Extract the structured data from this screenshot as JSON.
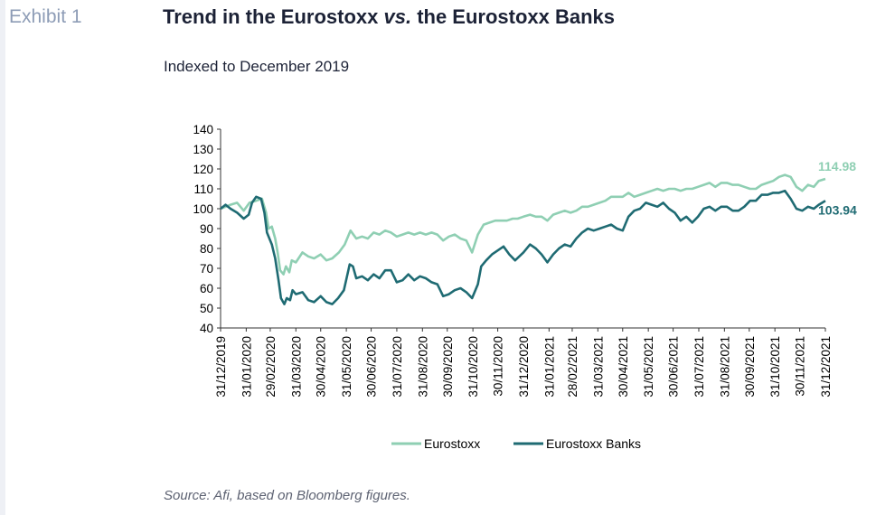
{
  "header": {
    "exhibit": "Exhibit 1",
    "title_part1": "Trend in the Eurostoxx ",
    "title_italic": "vs.",
    "title_part2": " the Eurostoxx Banks",
    "subtitle": "Indexed to December 2019"
  },
  "footer": {
    "source": "Source: Afi, based on Bloomberg figures."
  },
  "colors": {
    "eurostoxx": "#8fcfb3",
    "banks": "#1f6b73",
    "title": "#1c2236",
    "exhibit": "#8d9cb6"
  },
  "chart_data": {
    "type": "line",
    "ylim": [
      40,
      140
    ],
    "y_ticks": [
      40,
      50,
      60,
      70,
      80,
      90,
      100,
      110,
      120,
      130,
      140
    ],
    "x_start": "31/12/2019",
    "x_end": "31/12/2021",
    "x_tick_labels": [
      "31/12/2019",
      "31/01/2020",
      "29/02/2020",
      "31/03/2020",
      "30/04/2020",
      "31/05/2020",
      "30/06/2020",
      "31/07/2020",
      "31/08/2020",
      "30/09/2020",
      "31/10/2020",
      "30/11/2020",
      "31/12/2020",
      "31/01/2021",
      "28/02/2021",
      "31/03/2021",
      "30/04/2021",
      "31/05/2021",
      "30/06/2021",
      "31/07/2021",
      "31/08/2021",
      "30/09/2021",
      "31/10/2021",
      "30/11/2021",
      "31/12/2021"
    ],
    "legend_position": "bottom",
    "series": [
      {
        "name": "Eurostoxx",
        "end_label": "114.98",
        "points": [
          [
            "31/12/2019",
            100
          ],
          [
            "06/01/2020",
            101
          ],
          [
            "12/01/2020",
            102
          ],
          [
            "20/01/2020",
            103
          ],
          [
            "28/01/2020",
            99
          ],
          [
            "04/02/2020",
            103
          ],
          [
            "12/02/2020",
            104
          ],
          [
            "19/02/2020",
            105
          ],
          [
            "24/02/2020",
            98
          ],
          [
            "27/02/2020",
            90
          ],
          [
            "02/03/2020",
            91
          ],
          [
            "06/03/2020",
            85
          ],
          [
            "09/03/2020",
            78
          ],
          [
            "12/03/2020",
            69
          ],
          [
            "16/03/2020",
            67
          ],
          [
            "19/03/2020",
            71
          ],
          [
            "23/03/2020",
            68
          ],
          [
            "26/03/2020",
            74
          ],
          [
            "31/03/2020",
            73
          ],
          [
            "08/04/2020",
            78
          ],
          [
            "15/04/2020",
            76
          ],
          [
            "22/04/2020",
            75
          ],
          [
            "30/04/2020",
            77
          ],
          [
            "07/05/2020",
            74
          ],
          [
            "14/05/2020",
            75
          ],
          [
            "22/05/2020",
            78
          ],
          [
            "29/05/2020",
            82
          ],
          [
            "05/06/2020",
            89
          ],
          [
            "12/06/2020",
            85
          ],
          [
            "19/06/2020",
            86
          ],
          [
            "26/06/2020",
            85
          ],
          [
            "03/07/2020",
            88
          ],
          [
            "10/07/2020",
            87
          ],
          [
            "17/07/2020",
            89
          ],
          [
            "24/07/2020",
            88
          ],
          [
            "31/07/2020",
            86
          ],
          [
            "07/08/2020",
            87
          ],
          [
            "14/08/2020",
            88
          ],
          [
            "21/08/2020",
            87
          ],
          [
            "28/08/2020",
            88
          ],
          [
            "04/09/2020",
            87
          ],
          [
            "11/09/2020",
            88
          ],
          [
            "18/09/2020",
            87
          ],
          [
            "25/09/2020",
            84
          ],
          [
            "02/10/2020",
            86
          ],
          [
            "09/10/2020",
            87
          ],
          [
            "16/10/2020",
            85
          ],
          [
            "23/10/2020",
            84
          ],
          [
            "30/10/2020",
            78
          ],
          [
            "06/11/2020",
            87
          ],
          [
            "13/11/2020",
            92
          ],
          [
            "20/11/2020",
            93
          ],
          [
            "27/11/2020",
            94
          ],
          [
            "04/12/2020",
            94
          ],
          [
            "11/12/2020",
            94
          ],
          [
            "18/12/2020",
            95
          ],
          [
            "24/12/2020",
            95
          ],
          [
            "31/12/2020",
            96
          ],
          [
            "08/01/2021",
            97
          ],
          [
            "15/01/2021",
            96
          ],
          [
            "22/01/2021",
            96
          ],
          [
            "29/01/2021",
            94
          ],
          [
            "05/02/2021",
            97
          ],
          [
            "12/02/2021",
            98
          ],
          [
            "19/02/2021",
            99
          ],
          [
            "26/02/2021",
            98
          ],
          [
            "05/03/2021",
            99
          ],
          [
            "12/03/2021",
            101
          ],
          [
            "19/03/2021",
            101
          ],
          [
            "26/03/2021",
            102
          ],
          [
            "02/04/2021",
            103
          ],
          [
            "09/04/2021",
            104
          ],
          [
            "16/04/2021",
            106
          ],
          [
            "23/04/2021",
            106
          ],
          [
            "30/04/2021",
            106
          ],
          [
            "07/05/2021",
            108
          ],
          [
            "14/05/2021",
            106
          ],
          [
            "21/05/2021",
            107
          ],
          [
            "28/05/2021",
            108
          ],
          [
            "04/06/2021",
            109
          ],
          [
            "11/06/2021",
            110
          ],
          [
            "18/06/2021",
            109
          ],
          [
            "25/06/2021",
            110
          ],
          [
            "02/07/2021",
            110
          ],
          [
            "09/07/2021",
            109
          ],
          [
            "16/07/2021",
            110
          ],
          [
            "23/07/2021",
            110
          ],
          [
            "30/07/2021",
            111
          ],
          [
            "06/08/2021",
            112
          ],
          [
            "13/08/2021",
            113
          ],
          [
            "20/08/2021",
            111
          ],
          [
            "27/08/2021",
            113
          ],
          [
            "03/09/2021",
            113
          ],
          [
            "10/09/2021",
            112
          ],
          [
            "17/09/2021",
            112
          ],
          [
            "24/09/2021",
            111
          ],
          [
            "01/10/2021",
            110
          ],
          [
            "08/10/2021",
            110
          ],
          [
            "15/10/2021",
            112
          ],
          [
            "22/10/2021",
            113
          ],
          [
            "29/10/2021",
            114
          ],
          [
            "05/11/2021",
            116
          ],
          [
            "12/11/2021",
            117
          ],
          [
            "19/11/2021",
            116
          ],
          [
            "26/11/2021",
            111
          ],
          [
            "03/12/2021",
            109
          ],
          [
            "10/12/2021",
            112
          ],
          [
            "17/12/2021",
            111
          ],
          [
            "23/12/2021",
            114
          ],
          [
            "31/12/2021",
            114.98
          ]
        ]
      },
      {
        "name": "Eurostoxx Banks",
        "end_label": "103.94",
        "points": [
          [
            "31/12/2019",
            100
          ],
          [
            "06/01/2020",
            102
          ],
          [
            "12/01/2020",
            100
          ],
          [
            "20/01/2020",
            98
          ],
          [
            "28/01/2020",
            95
          ],
          [
            "03/02/2020",
            97
          ],
          [
            "07/02/2020",
            103
          ],
          [
            "12/02/2020",
            106
          ],
          [
            "18/02/2020",
            105
          ],
          [
            "22/02/2020",
            98
          ],
          [
            "25/02/2020",
            88
          ],
          [
            "02/03/2020",
            82
          ],
          [
            "06/03/2020",
            75
          ],
          [
            "10/03/2020",
            64
          ],
          [
            "13/03/2020",
            55
          ],
          [
            "17/03/2020",
            52
          ],
          [
            "20/03/2020",
            55
          ],
          [
            "24/03/2020",
            54
          ],
          [
            "27/03/2020",
            59
          ],
          [
            "31/03/2020",
            57
          ],
          [
            "08/04/2020",
            58
          ],
          [
            "15/04/2020",
            54
          ],
          [
            "22/04/2020",
            53
          ],
          [
            "30/04/2020",
            56
          ],
          [
            "07/05/2020",
            53
          ],
          [
            "14/05/2020",
            52
          ],
          [
            "21/05/2020",
            55
          ],
          [
            "28/05/2020",
            59
          ],
          [
            "04/06/2020",
            72
          ],
          [
            "08/06/2020",
            71
          ],
          [
            "12/06/2020",
            65
          ],
          [
            "19/06/2020",
            66
          ],
          [
            "26/06/2020",
            64
          ],
          [
            "03/07/2020",
            67
          ],
          [
            "10/07/2020",
            65
          ],
          [
            "17/07/2020",
            69
          ],
          [
            "24/07/2020",
            69
          ],
          [
            "31/07/2020",
            63
          ],
          [
            "07/08/2020",
            64
          ],
          [
            "14/08/2020",
            67
          ],
          [
            "21/08/2020",
            64
          ],
          [
            "28/08/2020",
            66
          ],
          [
            "04/09/2020",
            65
          ],
          [
            "11/09/2020",
            63
          ],
          [
            "18/09/2020",
            62
          ],
          [
            "25/09/2020",
            56
          ],
          [
            "02/10/2020",
            57
          ],
          [
            "09/10/2020",
            59
          ],
          [
            "16/10/2020",
            60
          ],
          [
            "23/10/2020",
            58
          ],
          [
            "30/10/2020",
            55
          ],
          [
            "06/11/2020",
            62
          ],
          [
            "10/11/2020",
            71
          ],
          [
            "16/11/2020",
            74
          ],
          [
            "23/11/2020",
            77
          ],
          [
            "30/11/2020",
            79
          ],
          [
            "07/12/2020",
            81
          ],
          [
            "14/12/2020",
            77
          ],
          [
            "21/12/2020",
            74
          ],
          [
            "31/12/2020",
            78
          ],
          [
            "08/01/2021",
            82
          ],
          [
            "15/01/2021",
            80
          ],
          [
            "22/01/2021",
            77
          ],
          [
            "29/01/2021",
            73
          ],
          [
            "05/02/2021",
            77
          ],
          [
            "12/02/2021",
            80
          ],
          [
            "19/02/2021",
            82
          ],
          [
            "26/02/2021",
            81
          ],
          [
            "05/03/2021",
            85
          ],
          [
            "12/03/2021",
            88
          ],
          [
            "19/03/2021",
            90
          ],
          [
            "26/03/2021",
            89
          ],
          [
            "02/04/2021",
            90
          ],
          [
            "09/04/2021",
            91
          ],
          [
            "16/04/2021",
            92
          ],
          [
            "23/04/2021",
            90
          ],
          [
            "30/04/2021",
            89
          ],
          [
            "07/05/2021",
            96
          ],
          [
            "14/05/2021",
            99
          ],
          [
            "21/05/2021",
            100
          ],
          [
            "28/05/2021",
            103
          ],
          [
            "04/06/2021",
            102
          ],
          [
            "11/06/2021",
            101
          ],
          [
            "18/06/2021",
            103
          ],
          [
            "25/06/2021",
            100
          ],
          [
            "02/07/2021",
            98
          ],
          [
            "09/07/2021",
            94
          ],
          [
            "16/07/2021",
            96
          ],
          [
            "23/07/2021",
            93
          ],
          [
            "30/07/2021",
            96
          ],
          [
            "06/08/2021",
            100
          ],
          [
            "13/08/2021",
            101
          ],
          [
            "20/08/2021",
            99
          ],
          [
            "27/08/2021",
            101
          ],
          [
            "03/09/2021",
            101
          ],
          [
            "10/09/2021",
            99
          ],
          [
            "17/09/2021",
            99
          ],
          [
            "24/09/2021",
            101
          ],
          [
            "01/10/2021",
            104
          ],
          [
            "08/10/2021",
            104
          ],
          [
            "15/10/2021",
            107
          ],
          [
            "22/10/2021",
            107
          ],
          [
            "29/10/2021",
            108
          ],
          [
            "05/11/2021",
            108
          ],
          [
            "12/11/2021",
            109
          ],
          [
            "19/11/2021",
            105
          ],
          [
            "26/11/2021",
            100
          ],
          [
            "03/12/2021",
            99
          ],
          [
            "10/12/2021",
            101
          ],
          [
            "17/12/2021",
            100
          ],
          [
            "23/12/2021",
            102
          ],
          [
            "31/12/2021",
            103.94
          ]
        ]
      }
    ]
  }
}
